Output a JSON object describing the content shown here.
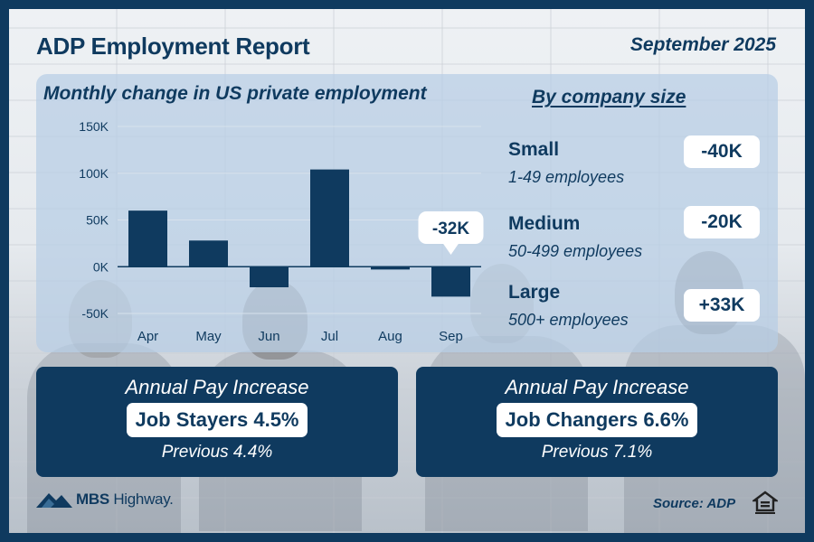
{
  "header": {
    "title": "ADP Employment Report",
    "date": "September 2025"
  },
  "chart_data": {
    "type": "bar",
    "title": "Monthly change in US private employment",
    "categories": [
      "Apr",
      "May",
      "Jun",
      "Jul",
      "Aug",
      "Sep"
    ],
    "values": [
      60,
      28,
      -22,
      104,
      -3,
      -32
    ],
    "units": "thousands",
    "ylim": [
      -50,
      150
    ],
    "yticks": [
      150,
      100,
      50,
      0,
      -50
    ],
    "ytick_labels": [
      "150K",
      "100K",
      "50K",
      "0K",
      "-50K"
    ],
    "grid": true,
    "color": "#0f3a5f",
    "annotation": {
      "category": "Sep",
      "text": "-32K"
    }
  },
  "company_size": {
    "title": "By company size",
    "segments": [
      {
        "label": "Small",
        "sublabel": "1-49 employees",
        "value": "-40K"
      },
      {
        "label": "Medium",
        "sublabel": "50-499 employees",
        "value": "-20K"
      },
      {
        "label": "Large",
        "sublabel": "500+ employees",
        "value": "+33K"
      }
    ]
  },
  "pay": [
    {
      "title": "Annual Pay Increase",
      "main": "Job Stayers 4.5%",
      "previous": "Previous 4.4%"
    },
    {
      "title": "Annual Pay Increase",
      "main": "Job Changers 6.6%",
      "previous": "Previous 7.1%"
    }
  ],
  "footer": {
    "brand_strong": "MBS",
    "brand_light": " Highway.",
    "source": "Source: ADP"
  },
  "colors": {
    "navy": "#0f3a5f",
    "panel": "#b7cde4",
    "white": "#ffffff"
  },
  "icons": [
    "mbs-highway-logo-icon",
    "equal-housing-opportunity-icon"
  ]
}
